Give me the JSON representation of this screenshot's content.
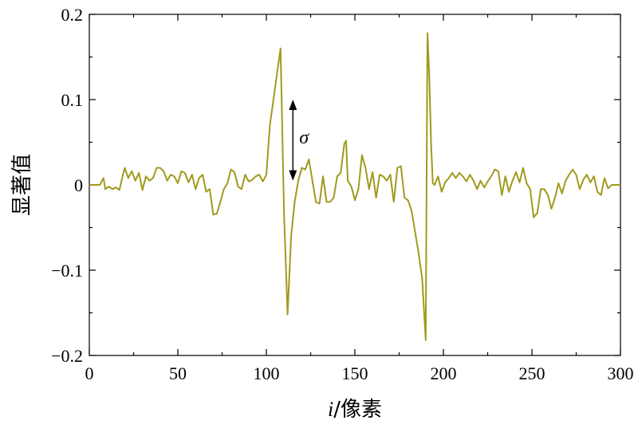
{
  "chart_data": {
    "type": "line",
    "title": "",
    "xlabel_italic": "i",
    "xlabel_rest": "/像素",
    "ylabel": "显著值",
    "xlim": [
      0,
      300
    ],
    "ylim": [
      -0.2,
      0.2
    ],
    "xticks": [
      0,
      50,
      100,
      150,
      200,
      250,
      300
    ],
    "xtick_labels": [
      "0",
      "50",
      "100",
      "150",
      "200",
      "250",
      "300"
    ],
    "yticks": [
      -0.2,
      -0.1,
      0,
      0.1,
      0.2
    ],
    "ytick_labels": [
      "−0.2",
      "−0.1",
      "0",
      "0.1",
      "0.2"
    ],
    "grid": false,
    "line_color": "#a09a1e",
    "annotation": {
      "text": "σ",
      "x": 115,
      "y_top": 0.1,
      "y_bottom": 0.005
    },
    "series": [
      {
        "x": [
          0,
          3,
          6,
          8,
          9,
          11,
          13,
          15,
          17,
          19,
          20,
          22,
          24,
          26,
          28,
          30,
          32,
          34,
          36,
          38,
          40,
          42,
          44,
          46,
          48,
          50,
          52,
          54,
          56,
          58,
          60,
          62,
          64,
          66,
          68,
          70,
          71,
          72,
          74,
          76,
          78,
          80,
          82,
          84,
          86,
          88,
          90,
          92,
          94,
          96,
          98,
          100,
          102,
          104,
          106,
          108,
          110,
          112,
          114,
          116,
          118,
          120,
          122,
          124,
          126,
          128,
          130,
          132,
          134,
          136,
          138,
          140,
          142,
          144,
          145,
          146,
          148,
          150,
          152,
          154,
          156,
          158,
          160,
          162,
          164,
          166,
          168,
          170,
          172,
          174,
          176,
          178,
          180,
          182,
          184,
          186,
          188,
          190,
          191,
          192,
          193,
          194,
          195,
          197,
          199,
          201,
          203,
          205,
          207,
          209,
          211,
          213,
          215,
          217,
          219,
          221,
          223,
          225,
          227,
          229,
          231,
          233,
          235,
          237,
          239,
          241,
          243,
          245,
          247,
          249,
          251,
          253,
          255,
          257,
          259,
          261,
          263,
          265,
          267,
          269,
          271,
          273,
          275,
          277,
          279,
          281,
          283,
          285,
          287,
          289,
          291,
          293,
          295,
          297,
          300
        ],
        "y": [
          0,
          0,
          0,
          0.008,
          -0.005,
          -0.002,
          -0.005,
          -0.003,
          -0.006,
          0.012,
          0.02,
          0.008,
          0.016,
          0.005,
          0.014,
          -0.006,
          0.01,
          0.005,
          0.008,
          0.02,
          0.02,
          0.016,
          0.005,
          0.012,
          0.01,
          0.002,
          0.016,
          0.014,
          0.003,
          0.012,
          -0.005,
          0.008,
          0.012,
          -0.008,
          -0.005,
          -0.035,
          -0.034,
          -0.034,
          -0.02,
          -0.005,
          0.002,
          0.018,
          0.015,
          -0.002,
          -0.005,
          0.012,
          0.004,
          0.006,
          0.01,
          0.012,
          0.004,
          0.012,
          0.07,
          0.1,
          0.13,
          0.16,
          -0.035,
          -0.152,
          -0.06,
          -0.02,
          0.005,
          0.02,
          0.018,
          0.03,
          0.005,
          -0.02,
          -0.022,
          0.01,
          -0.02,
          -0.02,
          -0.015,
          0.01,
          0.014,
          0.048,
          0.052,
          0.005,
          -0.002,
          -0.018,
          -0.005,
          0.035,
          0.02,
          -0.005,
          0.015,
          -0.015,
          0.012,
          0.01,
          0.005,
          0.012,
          -0.02,
          0.02,
          0.022,
          -0.015,
          -0.018,
          -0.03,
          -0.055,
          -0.08,
          -0.11,
          -0.182,
          0.178,
          0.13,
          0.05,
          0.002,
          0.0,
          0.01,
          -0.008,
          0.003,
          0.008,
          0.014,
          0.008,
          0.014,
          0.01,
          0.004,
          0.012,
          0.005,
          -0.005,
          0.005,
          -0.003,
          0.004,
          0.01,
          0.018,
          0.016,
          -0.012,
          0.01,
          -0.008,
          0.005,
          0.015,
          0.003,
          0.02,
          0.002,
          -0.005,
          -0.038,
          -0.033,
          -0.005,
          -0.005,
          -0.012,
          -0.028,
          -0.015,
          0.002,
          -0.01,
          0.005,
          0.012,
          0.018,
          0.012,
          -0.005,
          0.006,
          0.012,
          0.003,
          0.01,
          -0.008,
          -0.012,
          0.008,
          -0.004,
          0,
          0,
          0
        ]
      }
    ]
  }
}
